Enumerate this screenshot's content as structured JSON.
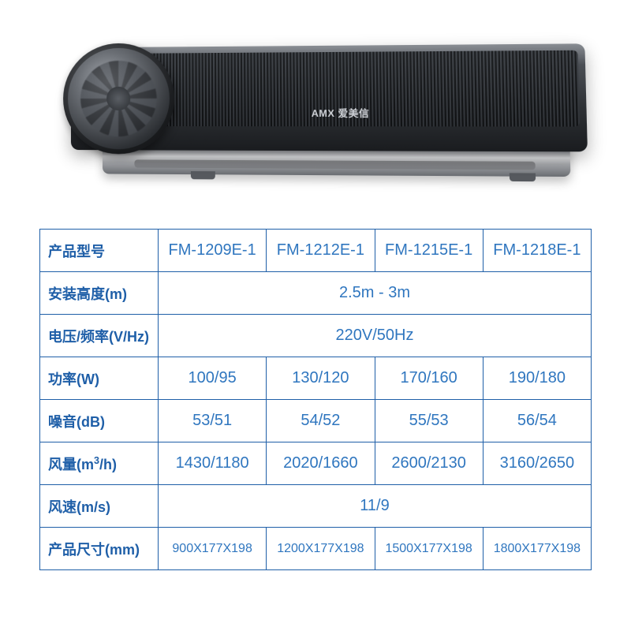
{
  "brand": "AMX 爱美信",
  "styling": {
    "border_color": "#1f5fa8",
    "header_color": "#1f5fa8",
    "value_color": "#2f76bf",
    "header_fontsize": 18,
    "value_fontsize": 20,
    "small_value_fontsize": 16,
    "background": "#ffffff"
  },
  "table": {
    "columns": [
      "FM-1209E-1",
      "FM-1212E-1",
      "FM-1215E-1",
      "FM-1218E-1"
    ],
    "rows": [
      {
        "label": "产品型号",
        "values": [
          "FM-1209E-1",
          "FM-1212E-1",
          "FM-1215E-1",
          "FM-1218E-1"
        ],
        "span": false
      },
      {
        "label": "安装高度(m)",
        "values": [
          "2.5m - 3m"
        ],
        "span": true
      },
      {
        "label": "电压/频率(V/Hz)",
        "values": [
          "220V/50Hz"
        ],
        "span": true
      },
      {
        "label": "功率(W)",
        "values": [
          "100/95",
          "130/120",
          "170/160",
          "190/180"
        ],
        "span": false
      },
      {
        "label": "噪音(dB)",
        "values": [
          "53/51",
          "54/52",
          "55/53",
          "56/54"
        ],
        "span": false
      },
      {
        "label": "风量(m³/h)",
        "label_html": "风量(m<span class='sup'>3</span>/h)",
        "values": [
          "1430/1180",
          "2020/1660",
          "2600/2130",
          "3160/2650"
        ],
        "span": false
      },
      {
        "label": "风速(m/s)",
        "values": [
          "11/9"
        ],
        "span": true
      },
      {
        "label": "产品尺寸(mm)",
        "values": [
          "900X177X198",
          "1200X177X198",
          "1500X177X198",
          "1800X177X198"
        ],
        "span": false,
        "small": true
      }
    ]
  }
}
